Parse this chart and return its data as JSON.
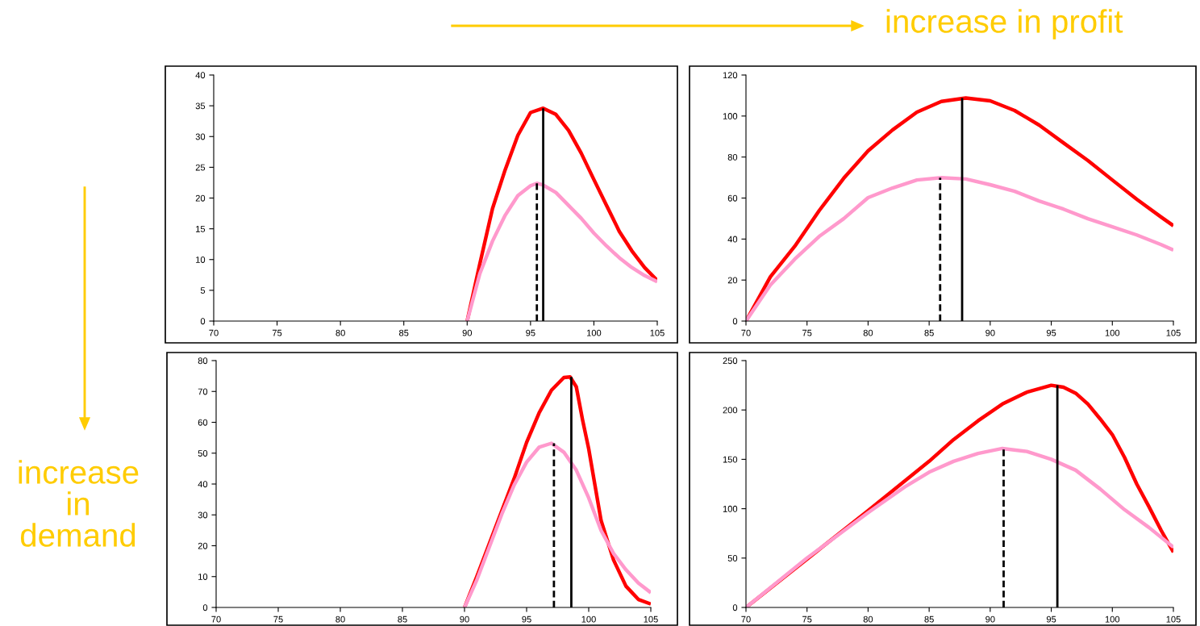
{
  "chart_data": [
    {
      "type": "line",
      "xlim": [
        70,
        105
      ],
      "xticks": [
        70,
        75,
        80,
        85,
        90,
        95,
        100,
        105
      ],
      "ylim": [
        0,
        40
      ],
      "yticks": [
        0,
        5,
        10,
        15,
        20,
        25,
        30,
        35,
        40
      ],
      "grid": false,
      "legend": false,
      "annotations": [
        "increase in profit",
        "increase in demand"
      ],
      "series": [
        {
          "color": "#ff0000",
          "x": [
            90,
            91,
            92,
            93,
            94,
            95,
            96,
            97,
            98,
            99,
            100,
            101,
            102,
            103,
            104,
            105
          ],
          "values": [
            0,
            9.3,
            18.3,
            24.6,
            30.2,
            33.9,
            34.6,
            33.6,
            31.0,
            27.3,
            23.0,
            18.8,
            14.6,
            11.4,
            8.7,
            6.6
          ]
        },
        {
          "color": "#ff99cc",
          "x": [
            90,
            91,
            92,
            93,
            94,
            95,
            95.5,
            96,
            97,
            98,
            99,
            100,
            101,
            102,
            103,
            104,
            105
          ],
          "values": [
            0,
            7.7,
            13.0,
            17.2,
            20.4,
            22.0,
            22.4,
            22.1,
            20.9,
            18.8,
            16.7,
            14.3,
            12.2,
            10.3,
            8.7,
            7.4,
            6.4
          ]
        },
        {
          "color": "#000000",
          "line_style": "solid",
          "x": [
            96.0,
            96.0
          ],
          "values": [
            0,
            34.6
          ]
        },
        {
          "color": "#000000",
          "line_style": "dashed",
          "x": [
            95.5,
            95.5
          ],
          "values": [
            0,
            22.4
          ]
        }
      ]
    },
    {
      "type": "line",
      "xlim": [
        70,
        105
      ],
      "xticks": [
        70,
        75,
        80,
        85,
        90,
        95,
        100,
        105
      ],
      "ylim": [
        0,
        120
      ],
      "yticks": [
        0,
        20,
        40,
        60,
        80,
        100,
        120
      ],
      "grid": false,
      "legend": false,
      "series": [
        {
          "color": "#ff0000",
          "x": [
            70,
            72,
            74,
            76,
            78,
            80,
            82,
            84,
            86,
            88,
            90,
            92,
            94,
            96,
            98,
            100,
            102,
            104,
            105
          ],
          "values": [
            0,
            21.6,
            36.5,
            53.9,
            69.6,
            83.0,
            93.2,
            101.9,
            107.1,
            108.8,
            107.4,
            102.7,
            95.6,
            86.9,
            78.3,
            68.8,
            59.4,
            50.7,
            46.5
          ]
        },
        {
          "color": "#ff99cc",
          "x": [
            70,
            72,
            74,
            76,
            78,
            80,
            82,
            84,
            86,
            88,
            90,
            92,
            94,
            96,
            98,
            100,
            102,
            104,
            105
          ],
          "values": [
            0,
            17.6,
            30.2,
            41.3,
            49.9,
            60.2,
            64.9,
            68.8,
            69.9,
            69.3,
            66.5,
            63.3,
            58.6,
            54.6,
            49.9,
            46.0,
            42.0,
            37.3,
            34.6
          ]
        },
        {
          "color": "#000000",
          "line_style": "solid",
          "x": [
            87.7,
            87.7
          ],
          "values": [
            0,
            108.8
          ]
        },
        {
          "color": "#000000",
          "line_style": "dashed",
          "x": [
            85.9,
            85.9
          ],
          "values": [
            0,
            69.9
          ]
        }
      ]
    },
    {
      "type": "line",
      "xlim": [
        70,
        105
      ],
      "xticks": [
        70,
        75,
        80,
        85,
        90,
        95,
        100,
        105
      ],
      "ylim": [
        0,
        80
      ],
      "yticks": [
        0,
        10,
        20,
        30,
        40,
        50,
        60,
        70,
        80
      ],
      "grid": false,
      "legend": false,
      "series": [
        {
          "color": "#ff0000",
          "x": [
            90,
            91,
            92,
            93,
            94,
            95,
            96,
            97,
            98,
            98.5,
            99,
            99.5,
            100,
            100.5,
            101,
            102,
            103,
            104,
            105
          ],
          "values": [
            0,
            10.1,
            20.7,
            31.3,
            41.8,
            53.5,
            63.0,
            70.4,
            74.5,
            74.7,
            71.5,
            60.9,
            51.4,
            39.7,
            28.1,
            15.4,
            6.9,
            2.6,
            1.1
          ]
        },
        {
          "color": "#ff99cc",
          "x": [
            90,
            91,
            92,
            93,
            94,
            95,
            96,
            97,
            98,
            99,
            100,
            101,
            102,
            103,
            104,
            105
          ],
          "values": [
            0,
            9.0,
            19.6,
            30.2,
            39.7,
            47.1,
            51.9,
            53.2,
            50.3,
            44.5,
            35.5,
            24.9,
            17.5,
            12.2,
            7.9,
            4.8
          ]
        },
        {
          "color": "#000000",
          "line_style": "solid",
          "x": [
            98.6,
            98.6
          ],
          "values": [
            0,
            74.7
          ]
        },
        {
          "color": "#000000",
          "line_style": "dashed",
          "x": [
            97.2,
            97.2
          ],
          "values": [
            0,
            53.2
          ]
        }
      ]
    },
    {
      "type": "line",
      "xlim": [
        70,
        105
      ],
      "xticks": [
        70,
        75,
        80,
        85,
        90,
        95,
        100,
        105
      ],
      "ylim": [
        0,
        250
      ],
      "yticks": [
        0,
        50,
        100,
        150,
        200,
        250
      ],
      "grid": false,
      "legend": false,
      "series": [
        {
          "color": "#ff0000",
          "x": [
            70,
            80,
            85,
            87,
            89,
            91,
            93,
            95,
            96,
            97,
            98,
            99,
            100,
            101,
            102,
            103,
            104,
            105
          ],
          "values": [
            0,
            98,
            148,
            170,
            189,
            206,
            218,
            225,
            223,
            217,
            206,
            191,
            175,
            152,
            125,
            102,
            78,
            56
          ]
        },
        {
          "color": "#ff99cc",
          "x": [
            70,
            75,
            80,
            83,
            85,
            87,
            89,
            91,
            93,
            95,
            97,
            99,
            101,
            103,
            105
          ],
          "values": [
            0,
            50,
            96,
            122,
            137,
            148,
            156,
            161,
            158,
            150,
            139,
            120,
            99,
            81,
            61
          ]
        },
        {
          "color": "#000000",
          "line_style": "solid",
          "x": [
            95.5,
            95.5
          ],
          "values": [
            0,
            225
          ]
        },
        {
          "color": "#000000",
          "line_style": "dashed",
          "x": [
            91.1,
            91.1
          ],
          "values": [
            0,
            161
          ]
        }
      ]
    }
  ]
}
